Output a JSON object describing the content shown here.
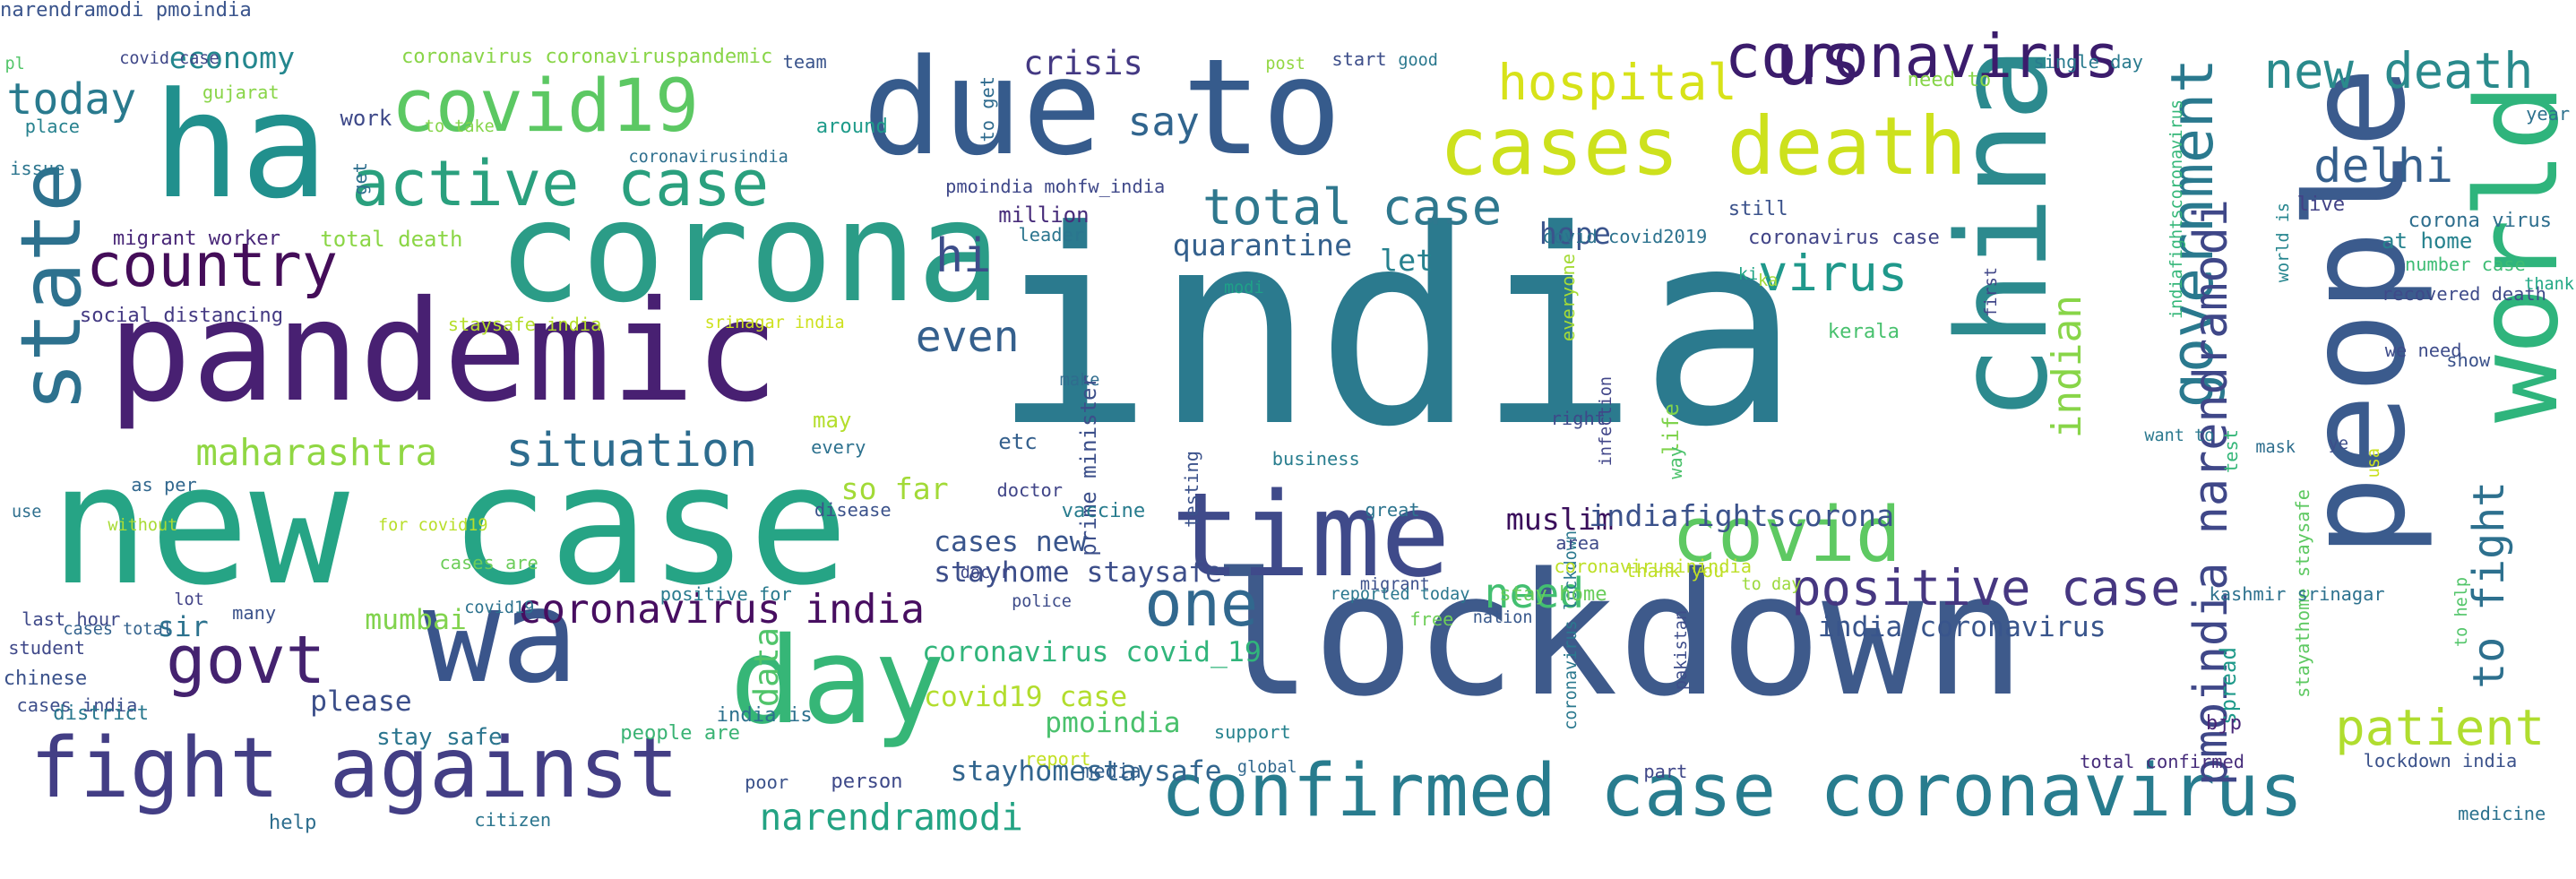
{
  "words": [
    {
      "text": "india",
      "color": "#2b7a8e",
      "rotated": false
    },
    {
      "text": "lockdown",
      "color": "#3e5a8b",
      "rotated": false
    },
    {
      "text": "new case",
      "color": "#26a485",
      "rotated": false
    },
    {
      "text": "people",
      "color": "#3b5b8d",
      "rotated": true
    },
    {
      "text": "corona",
      "color": "#2b9c87",
      "rotated": false
    },
    {
      "text": "ha",
      "color": "#21908d",
      "rotated": false
    },
    {
      "text": "pandemic",
      "color": "#482072",
      "rotated": false
    },
    {
      "text": "due to",
      "color": "#365b8c",
      "rotated": false
    },
    {
      "text": "china",
      "color": "#2c8a8e",
      "rotated": true
    },
    {
      "text": "wa",
      "color": "#3a558b",
      "rotated": false
    },
    {
      "text": "day",
      "color": "#36b677",
      "rotated": false
    },
    {
      "text": "time",
      "color": "#3f4a8a",
      "rotated": false
    },
    {
      "text": "world",
      "color": "#2fb47c",
      "rotated": true
    },
    {
      "text": "cases death",
      "color": "#cde11d",
      "rotated": false
    },
    {
      "text": "confirmed case coronavirus",
      "color": "#287c8e",
      "rotated": false
    },
    {
      "text": "fight against",
      "color": "#433e85",
      "rotated": false
    },
    {
      "text": "covid19",
      "color": "#5cc863",
      "rotated": false
    },
    {
      "text": "state",
      "color": "#2d718e",
      "rotated": true
    },
    {
      "text": "active case",
      "color": "#2aa07e",
      "rotated": false
    },
    {
      "text": "country",
      "color": "#440d59",
      "rotated": false
    },
    {
      "text": "government",
      "color": "#2a798e",
      "rotated": true
    },
    {
      "text": "covid",
      "color": "#5ec962",
      "rotated": false
    },
    {
      "text": "us",
      "color": "#3b1c6c",
      "rotated": false
    },
    {
      "text": "govt",
      "color": "#44226f",
      "rotated": false
    },
    {
      "text": "one",
      "color": "#31688e",
      "rotated": false
    },
    {
      "text": "hospital",
      "color": "#d7e219",
      "rotated": false
    },
    {
      "text": "positive case",
      "color": "#463781",
      "rotated": false
    },
    {
      "text": "new death",
      "color": "#2a8a8c",
      "rotated": false
    },
    {
      "text": "total case",
      "color": "#2f788e",
      "rotated": false
    },
    {
      "text": "patient",
      "color": "#b0dd2f",
      "rotated": false
    },
    {
      "text": "situation",
      "color": "#2d6c8e",
      "rotated": false
    },
    {
      "text": "virus",
      "color": "#1f988b",
      "rotated": false
    },
    {
      "text": "delhi",
      "color": "#355f8d",
      "rotated": false
    },
    {
      "text": "narendramodi",
      "color": "#23a383",
      "rotated": false
    },
    {
      "text": "coronavirus india",
      "color": "#470e60",
      "rotated": false
    },
    {
      "text": "to fight",
      "color": "#2d708e",
      "rotated": true
    },
    {
      "text": "indian",
      "color": "#88d548",
      "rotated": true
    },
    {
      "text": "maharashtra",
      "color": "#90d743",
      "rotated": false
    },
    {
      "text": "even",
      "color": "#35608d",
      "rotated": false
    },
    {
      "text": "need",
      "color": "#43bf71",
      "rotated": false
    },
    {
      "text": "say",
      "color": "#31658e",
      "rotated": false
    },
    {
      "text": "hi",
      "color": "#3d4d8a",
      "rotated": false
    },
    {
      "text": "today",
      "color": "#297a8e",
      "rotated": false
    },
    {
      "text": "economy",
      "color": "#24878e",
      "rotated": false
    },
    {
      "text": "pmoindia narendramodi",
      "color": "#3f4788",
      "rotated": true
    },
    {
      "text": "crisis",
      "color": "#443983",
      "rotated": false
    },
    {
      "text": "quarantine",
      "color": "#34608d",
      "rotated": false
    },
    {
      "text": "hope",
      "color": "#3a548c",
      "rotated": false
    },
    {
      "text": "let",
      "color": "#26818e",
      "rotated": false
    },
    {
      "text": "muslim",
      "color": "#3a0e5b",
      "rotated": false
    },
    {
      "text": "indiafightscorona",
      "color": "#3b528b",
      "rotated": false
    },
    {
      "text": "india coronavirus",
      "color": "#39558c",
      "rotated": false
    },
    {
      "text": "mumbai",
      "color": "#81d34d",
      "rotated": false
    },
    {
      "text": "covid19 case",
      "color": "#b2dd2d",
      "rotated": false
    },
    {
      "text": "coronavirus covid_19",
      "color": "#31b57b",
      "rotated": false
    },
    {
      "text": "cases new",
      "color": "#39558c",
      "rotated": false
    },
    {
      "text": "stayhome staysafe",
      "color": "#3d4e8a",
      "rotated": false
    },
    {
      "text": "so far",
      "color": "#a2da37",
      "rotated": false
    },
    {
      "text": "pmoindia",
      "color": "#4ac16d",
      "rotated": false
    },
    {
      "text": "please",
      "color": "#3c4f8a",
      "rotated": false
    },
    {
      "text": "data",
      "color": "#50c46a",
      "rotated": true
    },
    {
      "text": "sir",
      "color": "#2c728e",
      "rotated": false
    },
    {
      "text": "stayhomestaysafe",
      "color": "#32658e",
      "rotated": false
    },
    {
      "text": "coronavirus",
      "color": "#3b1c6c",
      "rotated": false
    },
    {
      "text": "covid case",
      "color": "#3f4788",
      "rotated": false
    },
    {
      "text": "coronavirus coronaviruspandemic",
      "color": "#89d548",
      "rotated": false
    },
    {
      "text": "team",
      "color": "#3a548c",
      "rotated": false
    },
    {
      "text": "pl",
      "color": "#52c569",
      "rotated": false
    },
    {
      "text": "gujarat",
      "color": "#89d548",
      "rotated": false
    },
    {
      "text": "place",
      "color": "#26818e",
      "rotated": false
    },
    {
      "text": "issue",
      "color": "#2b758e",
      "rotated": false
    },
    {
      "text": "to take",
      "color": "#85d54a",
      "rotated": false
    },
    {
      "text": "work",
      "color": "#3e4989",
      "rotated": false
    },
    {
      "text": "around",
      "color": "#1e9b8a",
      "rotated": false
    },
    {
      "text": "get",
      "color": "#2e6f8e",
      "rotated": true
    },
    {
      "text": "to get",
      "color": "#2f6b8e",
      "rotated": true
    },
    {
      "text": "post",
      "color": "#92d742",
      "rotated": false
    },
    {
      "text": "start",
      "color": "#3d4e8a",
      "rotated": false
    },
    {
      "text": "good",
      "color": "#2a788e",
      "rotated": false
    },
    {
      "text": "need to",
      "color": "#87d549",
      "rotated": false
    },
    {
      "text": "single day",
      "color": "#297b8e",
      "rotated": false
    },
    {
      "text": "year",
      "color": "#2d718e",
      "rotated": false
    },
    {
      "text": "coronavirusindia",
      "color": "#2e6f8e",
      "rotated": false
    },
    {
      "text": "pmoindia mohfw_india",
      "color": "#3f4889",
      "rotated": false
    },
    {
      "text": "million",
      "color": "#472c7a",
      "rotated": false
    },
    {
      "text": "migrant worker",
      "color": "#482677",
      "rotated": false
    },
    {
      "text": "total death",
      "color": "#8bd646",
      "rotated": false
    },
    {
      "text": "leader",
      "color": "#2b758e",
      "rotated": false
    },
    {
      "text": "social distancing",
      "color": "#443a83",
      "rotated": false
    },
    {
      "text": "staysafe india",
      "color": "#b5de2b",
      "rotated": false
    },
    {
      "text": "srinagar india",
      "color": "#cde11d",
      "rotated": false
    },
    {
      "text": "covid covid2019",
      "color": "#2c728e",
      "rotated": false
    },
    {
      "text": "still",
      "color": "#3b528b",
      "rotated": false
    },
    {
      "text": "coronavirus case",
      "color": "#414487",
      "rotated": false
    },
    {
      "text": "ki",
      "color": "#20a486",
      "rotated": false
    },
    {
      "text": "first",
      "color": "#404688",
      "rotated": true
    },
    {
      "text": "indiafightscoronavirus",
      "color": "#35b779",
      "rotated": true
    },
    {
      "text": "live",
      "color": "#424186",
      "rotated": false
    },
    {
      "text": "corona virus",
      "color": "#2e6e8e",
      "rotated": false
    },
    {
      "text": "at home",
      "color": "#26828e",
      "rotated": false
    },
    {
      "text": "number case",
      "color": "#3dbc74",
      "rotated": false
    },
    {
      "text": "recovered death",
      "color": "#3e4a89",
      "rotated": false
    },
    {
      "text": "thank",
      "color": "#22a884",
      "rotated": false
    },
    {
      "text": "world is",
      "color": "#25858e",
      "rotated": true
    },
    {
      "text": "everyone",
      "color": "#a5db36",
      "rotated": true
    },
    {
      "text": "modi",
      "color": "#1fa188",
      "rotated": false
    },
    {
      "text": "ka",
      "color": "#a0da39",
      "rotated": false
    },
    {
      "text": "life",
      "color": "#80d34d",
      "rotated": true
    },
    {
      "text": "kerala",
      "color": "#48c16e",
      "rotated": false
    },
    {
      "text": "we need",
      "color": "#3e4c8a",
      "rotated": false
    },
    {
      "text": "show",
      "color": "#3b528b",
      "rotated": false
    },
    {
      "text": "etc",
      "color": "#35608d",
      "rotated": false
    },
    {
      "text": "may",
      "color": "#b4de2c",
      "rotated": false
    },
    {
      "text": "make",
      "color": "#2f6c8e",
      "rotated": false
    },
    {
      "text": "prime minister",
      "color": "#3c4f8a",
      "rotated": true
    },
    {
      "text": "testing",
      "color": "#3b528b",
      "rotated": true
    },
    {
      "text": "business",
      "color": "#287d8e",
      "rotated": false
    },
    {
      "text": "right",
      "color": "#3e4989",
      "rotated": false
    },
    {
      "text": "infection",
      "color": "#404588",
      "rotated": true
    },
    {
      "text": "way",
      "color": "#4cc26c",
      "rotated": true
    },
    {
      "text": "want to",
      "color": "#2a788e",
      "rotated": false
    },
    {
      "text": "test",
      "color": "#35b779",
      "rotated": true
    },
    {
      "text": "stayathome staysafe",
      "color": "#5ec962",
      "rotated": true
    },
    {
      "text": "mask",
      "color": "#2e6e8e",
      "rotated": false
    },
    {
      "text": "usa",
      "color": "#cae11f",
      "rotated": true
    },
    {
      "text": "ye",
      "color": "#3d4e8a",
      "rotated": false
    },
    {
      "text": "to help",
      "color": "#52c569",
      "rotated": true
    },
    {
      "text": "coronavirus lockdown",
      "color": "#2a788e",
      "rotated": true
    },
    {
      "text": "coronavirusinindia",
      "color": "#bddf26",
      "rotated": false
    },
    {
      "text": "stay home",
      "color": "#69cd5b",
      "rotated": false
    },
    {
      "text": "thank you",
      "color": "#c0df25",
      "rotated": false
    },
    {
      "text": "kashmir srinagar",
      "color": "#2d718e",
      "rotated": false
    },
    {
      "text": "every",
      "color": "#2c718e",
      "rotated": false
    },
    {
      "text": "as per",
      "color": "#31678e",
      "rotated": false
    },
    {
      "text": "use",
      "color": "#2e6f8e",
      "rotated": false
    },
    {
      "text": "without",
      "color": "#a8db34",
      "rotated": false
    },
    {
      "text": "disease",
      "color": "#3b528b",
      "rotated": false
    },
    {
      "text": "vaccine",
      "color": "#287c8e",
      "rotated": false
    },
    {
      "text": "doctor",
      "color": "#404588",
      "rotated": false
    },
    {
      "text": "great",
      "color": "#2c738e",
      "rotated": false
    },
    {
      "text": "for covid19",
      "color": "#b8de29",
      "rotated": false
    },
    {
      "text": "cases are",
      "color": "#6ccd5a",
      "rotated": false
    },
    {
      "text": "area",
      "color": "#3e4a89",
      "rotated": false
    },
    {
      "text": "doc r",
      "color": "#3f4788",
      "rotated": false
    },
    {
      "text": "lot",
      "color": "#414287",
      "rotated": false
    },
    {
      "text": "police",
      "color": "#3e4c8a",
      "rotated": false
    },
    {
      "text": "migrant",
      "color": "#3c508b",
      "rotated": false
    },
    {
      "text": "free",
      "color": "#6ece58",
      "rotated": false
    },
    {
      "text": "nation",
      "color": "#38588c",
      "rotated": false
    },
    {
      "text": "reported today",
      "color": "#2a778e",
      "rotated": false
    },
    {
      "text": "pakistan",
      "color": "#3d4d8a",
      "rotated": true
    },
    {
      "text": "to day",
      "color": "#9bd93c",
      "rotated": false
    },
    {
      "text": "spread",
      "color": "#1f9a8a",
      "rotated": true
    },
    {
      "text": "many",
      "color": "#3b528b",
      "rotated": false
    },
    {
      "text": "last hour",
      "color": "#3e4989",
      "rotated": false
    },
    {
      "text": "cases total",
      "color": "#33638d",
      "rotated": false
    },
    {
      "text": "student",
      "color": "#3f4889",
      "rotated": false
    },
    {
      "text": "positive for",
      "color": "#297a8e",
      "rotated": false
    },
    {
      "text": "covid19",
      "color": "#2c728e",
      "rotated": false
    },
    {
      "text": "chinese",
      "color": "#3b528b",
      "rotated": false
    },
    {
      "text": "cases india",
      "color": "#3d4e8a",
      "rotated": false
    },
    {
      "text": "district",
      "color": "#2a788e",
      "rotated": false
    },
    {
      "text": "stay safe",
      "color": "#2b758e",
      "rotated": false
    },
    {
      "text": "people are",
      "color": "#3ab374",
      "rotated": false
    },
    {
      "text": "india is",
      "color": "#2d718e",
      "rotated": false
    },
    {
      "text": "support",
      "color": "#26828e",
      "rotated": false
    },
    {
      "text": "bjp",
      "color": "#482677",
      "rotated": false
    },
    {
      "text": "report",
      "color": "#c2df23",
      "rotated": false
    },
    {
      "text": "poor",
      "color": "#3b528b",
      "rotated": false
    },
    {
      "text": "person",
      "color": "#3e4989",
      "rotated": false
    },
    {
      "text": "media",
      "color": "#35608d",
      "rotated": false
    },
    {
      "text": "global",
      "color": "#31688e",
      "rotated": false
    },
    {
      "text": "part",
      "color": "#3f4788",
      "rotated": false
    },
    {
      "text": "total confirmed",
      "color": "#472d7b",
      "rotated": false
    },
    {
      "text": "lockdown india",
      "color": "#3b528b",
      "rotated": false
    },
    {
      "text": "medicine",
      "color": "#2c728e",
      "rotated": false
    },
    {
      "text": "help",
      "color": "#2e6e8e",
      "rotated": false
    },
    {
      "text": "citizen",
      "color": "#2b758e",
      "rotated": false
    },
    {
      "text": "narendramodi pmoindia",
      "color": "#3a548c",
      "rotated": false
    }
  ]
}
